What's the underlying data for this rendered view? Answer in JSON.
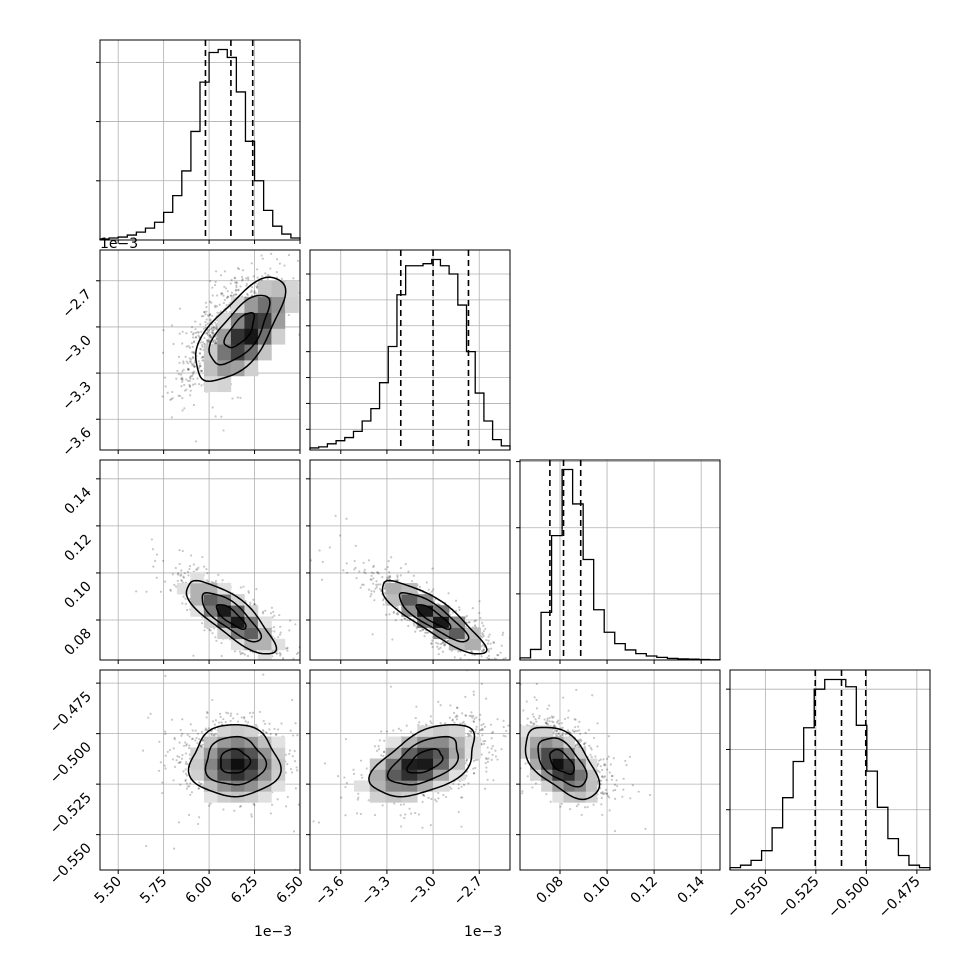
{
  "chart_data": {
    "type": "corner",
    "n_params": 4,
    "params": [
      {
        "range": [
          0.0054,
          0.0065
        ],
        "ticks": [
          0.0055,
          0.00575,
          0.006,
          0.00625,
          0.0065
        ],
        "tick_labels": [
          "5.50",
          "5.75",
          "6.00",
          "6.25",
          "6.50"
        ],
        "offset_label": "1e−3",
        "quantiles": [
          0.00598,
          0.00612,
          0.00624
        ],
        "hist_edges_range": [
          0.0054,
          0.0065
        ],
        "hist_values": [
          1,
          2,
          3,
          5,
          8,
          12,
          18,
          28,
          45,
          70,
          110,
          160,
          190,
          193,
          185,
          150,
          100,
          60,
          30,
          14,
          6,
          2
        ],
        "hist_yticks": [
          60,
          120,
          180
        ]
      },
      {
        "range": [
          -0.0038,
          -0.0025
        ],
        "ticks": [
          -0.0036,
          -0.0033,
          -0.003,
          -0.0027
        ],
        "tick_labels": [
          "−3.6",
          "−3.3",
          "−3.0",
          "−2.7"
        ],
        "offset_label": "1e−3",
        "quantiles": [
          -0.00321,
          -0.003,
          -0.00277
        ],
        "hist_edges_range": [
          -0.0038,
          -0.0025
        ],
        "hist_values": [
          2,
          3,
          6,
          9,
          12,
          18,
          28,
          40,
          65,
          100,
          150,
          178,
          178,
          180,
          184,
          178,
          170,
          140,
          95,
          55,
          28,
          10,
          4
        ],
        "hist_yticks": [
          20,
          45,
          70,
          95,
          120,
          145,
          170
        ]
      },
      {
        "range": [
          0.063,
          0.148
        ],
        "ticks": [
          0.08,
          0.1,
          0.12,
          0.14
        ],
        "tick_labels": [
          "0.08",
          "0.10",
          "0.12",
          "0.14"
        ],
        "offset_label": "",
        "quantiles": [
          0.0757,
          0.0815,
          0.0888
        ],
        "hist_edges_range": [
          0.063,
          0.148
        ],
        "hist_values": [
          8,
          40,
          180,
          470,
          720,
          590,
          380,
          190,
          105,
          62,
          38,
          24,
          15,
          10,
          6,
          4,
          3,
          2,
          1
        ],
        "hist_yticks": [
          250,
          500,
          750
        ]
      },
      {
        "range": [
          -0.5675,
          -0.4685
        ],
        "ticks": [
          -0.55,
          -0.525,
          -0.5,
          -0.475
        ],
        "tick_labels": [
          "−0.550",
          "−0.525",
          "−0.500",
          "−0.475"
        ],
        "offset_label": "",
        "quantiles": [
          -0.5253,
          -0.5123,
          -0.5003
        ],
        "hist_edges_range": [
          -0.5675,
          -0.4685
        ],
        "hist_values": [
          2,
          4,
          8,
          16,
          35,
          60,
          90,
          118,
          150,
          158,
          158,
          152,
          120,
          82,
          52,
          26,
          12,
          4,
          2
        ],
        "hist_yticks": [
          50,
          100,
          150
        ]
      }
    ],
    "pairs": [
      {
        "x": 0,
        "y": 1,
        "center": [
          0.00612,
          -0.00301
        ],
        "std": [
          0.00013,
          0.00018
        ],
        "corr": 0.68,
        "peak_offset": [
          0.0001,
          -3e-05
        ]
      },
      {
        "x": 0,
        "y": 2,
        "center": [
          0.00612,
          0.0815
        ],
        "std": [
          0.00013,
          0.0083
        ],
        "corr": -0.8,
        "peak_offset": [
          0.0,
          0.0
        ]
      },
      {
        "x": 1,
        "y": 2,
        "center": [
          -0.003,
          0.0815
        ],
        "std": [
          0.00018,
          0.0083
        ],
        "corr": -0.86,
        "peak_offset": [
          0.0,
          0.0
        ]
      },
      {
        "x": 0,
        "y": 3,
        "center": [
          0.00612,
          -0.5123
        ],
        "std": [
          0.00013,
          0.0095
        ],
        "corr": 0.0,
        "peak_offset": [
          4e-05,
          -0.003
        ]
      },
      {
        "x": 1,
        "y": 3,
        "center": [
          -0.003,
          -0.5123
        ],
        "std": [
          0.00018,
          0.0095
        ],
        "corr": 0.5,
        "peak_offset": [
          -0.0001,
          -0.003
        ]
      },
      {
        "x": 2,
        "y": 3,
        "center": [
          0.0815,
          -0.5123
        ],
        "std": [
          0.0083,
          0.0095
        ],
        "corr": -0.55,
        "peak_offset": [
          -0.0015,
          -0.0035
        ]
      }
    ],
    "contour_levels_sigma": [
      0.5,
      1.0,
      1.5
    ],
    "points_per_panel": 1100,
    "colors": {
      "line": "#000000",
      "grid": "#b0b0b0",
      "points": "#000000",
      "quantile_line": "#000000"
    }
  }
}
